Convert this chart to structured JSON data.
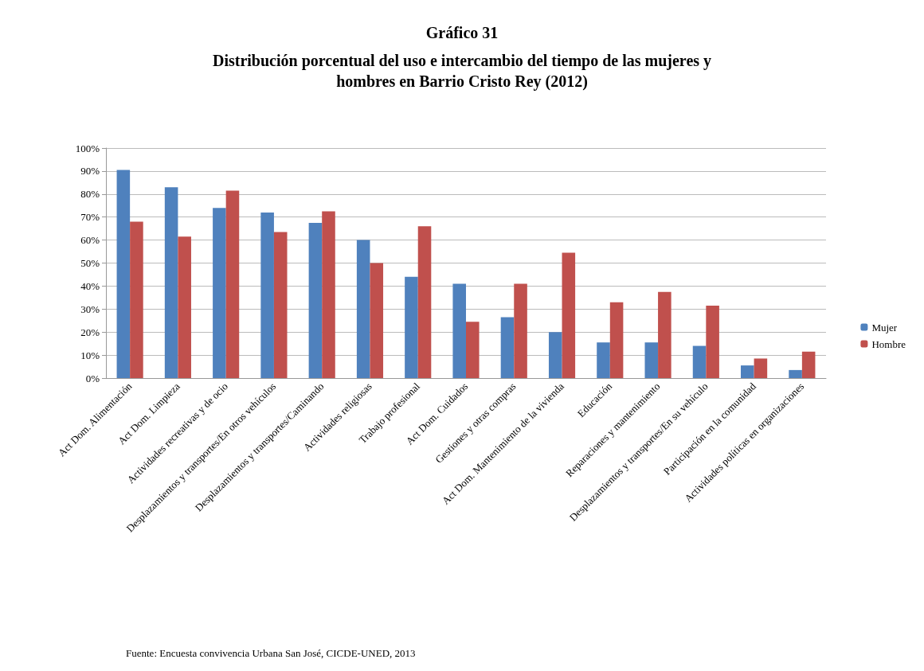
{
  "chart_data": {
    "type": "bar",
    "title": "Gráfico 31",
    "subtitle": "Distribución porcentual del uso e intercambio del tiempo de las mujeres y\nhombres en Barrio Cristo Rey (2012)",
    "categories": [
      "Act Dom. Alimentación",
      "Act Dom. Limpieza",
      "Actividades recreativas y de ocio",
      "Desplazamientos y transportes/En otros vehículos",
      "Desplazamientos y transportes/Caminando",
      "Actividades religiosas",
      "Trabajo profesional",
      "Act Dom. Cuidados",
      "Gestiones y otras compras",
      "Act Dom. Mantenimiento de la vivienda",
      "Educación",
      "Reparaciones y mantenimiento",
      "Desplazamientos y transportes/En su vehículo",
      "Participación en la comunidad",
      "Actividades políticas en organizaciones"
    ],
    "series": [
      {
        "name": "Mujer",
        "color": "#4f81bd",
        "values": [
          90.5,
          83,
          74,
          72,
          67.5,
          60,
          44,
          41,
          26.5,
          20,
          15.5,
          15.5,
          14,
          5.5,
          3.5
        ]
      },
      {
        "name": "Hombre",
        "color": "#c0504d",
        "values": [
          68,
          61.5,
          81.5,
          63.5,
          72.5,
          50,
          66,
          24.5,
          41,
          54.5,
          33,
          37.5,
          31.5,
          8.5,
          11.5
        ]
      }
    ],
    "ylim": [
      0,
      100
    ],
    "yticks": [
      {
        "value": 0,
        "label": "0%"
      },
      {
        "value": 10,
        "label": "10%"
      },
      {
        "value": 20,
        "label": "20%"
      },
      {
        "value": 30,
        "label": "30%"
      },
      {
        "value": 40,
        "label": "40%"
      },
      {
        "value": 50,
        "label": "50%"
      },
      {
        "value": 60,
        "label": "60%"
      },
      {
        "value": 70,
        "label": "70%"
      },
      {
        "value": 80,
        "label": "80%"
      },
      {
        "value": 90,
        "label": "90%"
      },
      {
        "value": 100,
        "label": "100%"
      }
    ],
    "grid": "y",
    "legend": "right",
    "annotations": [
      "Fuente: Encuesta convivencia Urbana San José, CICDE-UNED, 2013"
    ]
  }
}
